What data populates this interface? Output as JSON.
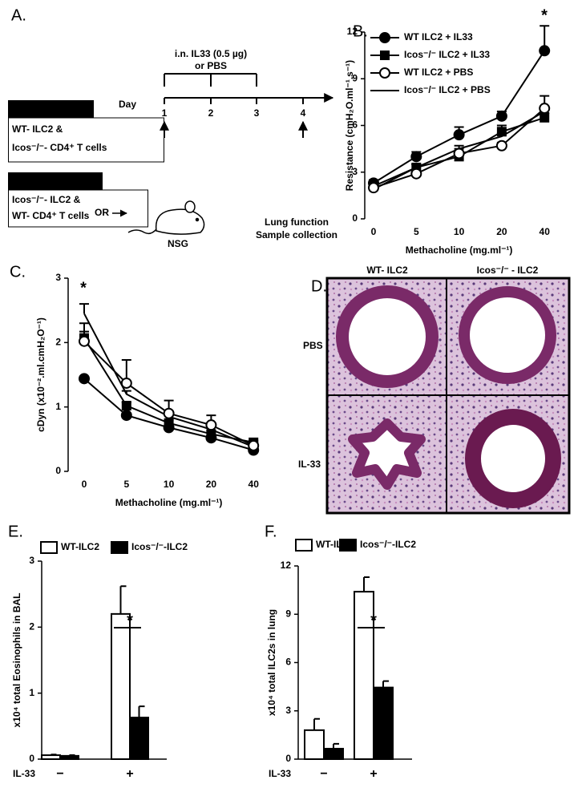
{
  "panel_a": {
    "label": "A.",
    "treatment": "i.n. IL33 (0.5 µg)",
    "treatment_alt": "or PBS",
    "day_label": "Day",
    "days": [
      "1",
      "2",
      "3",
      "4"
    ],
    "group1_line1": "WT- ILC2 &",
    "group1_line2": "Icos⁻/⁻- CD4⁺ T cells",
    "or": "OR",
    "group2_line1": "Icos⁻/⁻- ILC2 &",
    "group2_line2": "WT- CD4⁺ T cells",
    "mouse": "NSG",
    "readout_line1": "Lung function",
    "readout_line2": "Sample collection"
  },
  "panel_d": {
    "label": "D.",
    "columns": [
      "WT- ILC2",
      "Icos⁻/⁻ - ILC2"
    ],
    "rows": [
      "PBS",
      "IL-33"
    ]
  },
  "chart_data": [
    {
      "type": "line",
      "panel": "B.",
      "xlabel": "Methacholine (mg.ml⁻¹)",
      "ylabel": "Resistance (cmH₂O.ml⁻¹.s⁻¹)",
      "categories": [
        "0",
        "5",
        "10",
        "20",
        "40"
      ],
      "ylim": [
        0,
        12
      ],
      "yticks": [
        0,
        3,
        6,
        9,
        12
      ],
      "annotation": "*",
      "series": [
        {
          "name": "WT ILC2 + IL33",
          "marker": "circle-filled",
          "color": "#000000",
          "values": [
            2.3,
            4.0,
            5.4,
            6.6,
            10.8
          ],
          "errors": [
            0.2,
            0.3,
            0.5,
            0.3,
            1.6
          ]
        },
        {
          "name": "Icos⁻/⁻ ILC2 + IL33",
          "marker": "square",
          "color": "#000000",
          "values": [
            2.1,
            3.3,
            4.0,
            5.6,
            6.5
          ],
          "errors": [
            0.1,
            0.2,
            0.2,
            0.4,
            0.3
          ]
        },
        {
          "name": "WT ILC2 + PBS",
          "marker": "circle-open",
          "color": "#000000",
          "values": [
            2.0,
            2.9,
            4.2,
            4.7,
            7.1
          ],
          "errors": [
            0.1,
            0.2,
            0.3,
            0.2,
            0.8
          ]
        },
        {
          "name": "Icos⁻/⁻ ILC2 + PBS",
          "marker": "none",
          "color": "#000000",
          "values": [
            1.9,
            3.3,
            4.5,
            5.3,
            6.9
          ],
          "errors": [
            0.1,
            0.2,
            0.2,
            0.2,
            0.3
          ]
        }
      ]
    },
    {
      "type": "line",
      "panel": "C.",
      "xlabel": "Methacholine (mg.ml⁻¹)",
      "ylabel": "cDyn (x10⁻².ml.cmH₂O⁻¹)",
      "categories": [
        "0",
        "5",
        "10",
        "20",
        "40"
      ],
      "ylim": [
        0,
        3
      ],
      "yticks": [
        0,
        1,
        2,
        3
      ],
      "annotation": "*",
      "series": [
        {
          "marker": "circle-filled",
          "color": "#000000",
          "values": [
            1.44,
            0.87,
            0.68,
            0.52,
            0.33
          ],
          "errors": [
            0.02,
            0.03,
            0.03,
            0.03,
            0.02
          ]
        },
        {
          "marker": "square",
          "color": "#000000",
          "values": [
            2.07,
            1.02,
            0.75,
            0.58,
            0.45
          ],
          "errors": [
            0.1,
            0.05,
            0.05,
            0.05,
            0.03
          ]
        },
        {
          "marker": "circle-open",
          "color": "#000000",
          "values": [
            2.02,
            1.37,
            0.9,
            0.72,
            0.4
          ],
          "errors": [
            0.28,
            0.36,
            0.2,
            0.15,
            0.05
          ]
        },
        {
          "marker": "none",
          "color": "#000000",
          "values": [
            2.45,
            1.2,
            0.85,
            0.65,
            0.38
          ],
          "errors": [
            0.15,
            0.05,
            0.05,
            0.05,
            0.03
          ]
        }
      ]
    },
    {
      "type": "bar",
      "panel": "E.",
      "xlabel": "IL-33",
      "ylabel": "x10⁴ total Eosinophils in BAL",
      "categories": [
        "−",
        "+"
      ],
      "ylim": [
        0,
        3
      ],
      "yticks": [
        0,
        1,
        2,
        3
      ],
      "annotation": "*",
      "series": [
        {
          "name": "WT-ILC2",
          "color": "#ffffff",
          "values": [
            0.06,
            2.2
          ],
          "errors": [
            0.01,
            0.42
          ]
        },
        {
          "name": "Icos⁻/⁻-ILC2",
          "color": "#000000",
          "values": [
            0.05,
            0.63
          ],
          "errors": [
            0.01,
            0.17
          ]
        }
      ]
    },
    {
      "type": "bar",
      "panel": "F.",
      "xlabel": "IL-33",
      "ylabel": "x10⁴ total ILC2s in lung",
      "categories": [
        "−",
        "+"
      ],
      "ylim": [
        0,
        12
      ],
      "yticks": [
        0,
        3,
        6,
        9,
        12
      ],
      "annotation": "*",
      "series": [
        {
          "name": "WT-ILC2",
          "color": "#ffffff",
          "values": [
            1.8,
            10.4
          ],
          "errors": [
            0.7,
            0.9
          ]
        },
        {
          "name": "Icos⁻/⁻-ILC2",
          "color": "#000000",
          "values": [
            0.65,
            4.45
          ],
          "errors": [
            0.3,
            0.4
          ]
        }
      ]
    }
  ]
}
